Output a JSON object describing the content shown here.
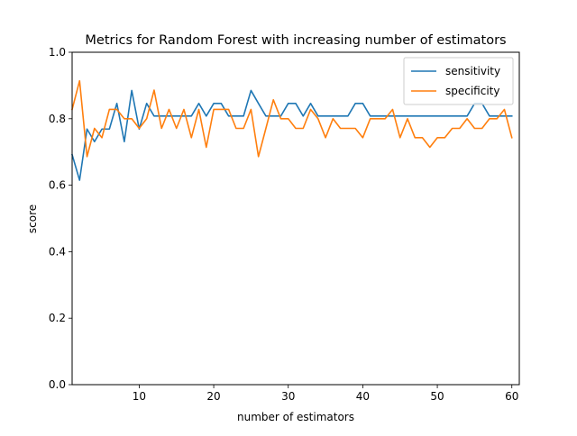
{
  "chart_data": {
    "type": "line",
    "title": "Metrics for Random Forest with increasing number of estimators",
    "xlabel": "number of estimators",
    "ylabel": "score",
    "xlim": [
      1,
      61
    ],
    "ylim": [
      0.0,
      1.0
    ],
    "xticks": [
      10,
      20,
      30,
      40,
      50,
      60
    ],
    "yticks": [
      0.0,
      0.2,
      0.4,
      0.6,
      0.8,
      1.0
    ],
    "xtick_labels": [
      "10",
      "20",
      "30",
      "40",
      "50",
      "60"
    ],
    "ytick_labels": [
      "0.0",
      "0.2",
      "0.4",
      "0.6",
      "0.8",
      "1.0"
    ],
    "grid": false,
    "legend_position": "top-right",
    "x": [
      1,
      2,
      3,
      4,
      5,
      6,
      7,
      8,
      9,
      10,
      11,
      12,
      13,
      14,
      15,
      16,
      17,
      18,
      19,
      20,
      21,
      22,
      23,
      24,
      25,
      26,
      27,
      28,
      29,
      30,
      31,
      32,
      33,
      34,
      35,
      36,
      37,
      38,
      39,
      40,
      41,
      42,
      43,
      44,
      45,
      46,
      47,
      48,
      49,
      50,
      51,
      52,
      53,
      54,
      55,
      56,
      57,
      58,
      59,
      60
    ],
    "series": [
      {
        "name": "sensitivity",
        "color": "#1f77b4",
        "values": [
          0.692,
          0.615,
          0.769,
          0.731,
          0.769,
          0.769,
          0.846,
          0.731,
          0.885,
          0.769,
          0.846,
          0.808,
          0.808,
          0.808,
          0.808,
          0.808,
          0.808,
          0.846,
          0.808,
          0.846,
          0.846,
          0.808,
          0.808,
          0.808,
          0.885,
          0.846,
          0.808,
          0.808,
          0.808,
          0.846,
          0.846,
          0.808,
          0.846,
          0.808,
          0.808,
          0.808,
          0.808,
          0.808,
          0.846,
          0.846,
          0.808,
          0.808,
          0.808,
          0.808,
          0.808,
          0.808,
          0.808,
          0.808,
          0.808,
          0.808,
          0.808,
          0.808,
          0.808,
          0.808,
          0.846,
          0.846,
          0.808,
          0.808,
          0.808,
          0.808
        ]
      },
      {
        "name": "specificity",
        "color": "#ff7f0e",
        "values": [
          0.828,
          0.914,
          0.686,
          0.771,
          0.743,
          0.828,
          0.828,
          0.8,
          0.8,
          0.771,
          0.8,
          0.886,
          0.771,
          0.828,
          0.771,
          0.828,
          0.743,
          0.828,
          0.714,
          0.828,
          0.828,
          0.828,
          0.771,
          0.771,
          0.828,
          0.686,
          0.771,
          0.857,
          0.8,
          0.8,
          0.771,
          0.771,
          0.828,
          0.8,
          0.743,
          0.8,
          0.771,
          0.771,
          0.771,
          0.743,
          0.8,
          0.8,
          0.8,
          0.828,
          0.743,
          0.8,
          0.743,
          0.743,
          0.714,
          0.743,
          0.743,
          0.771,
          0.771,
          0.8,
          0.771,
          0.771,
          0.8,
          0.8,
          0.828,
          0.743
        ]
      }
    ]
  }
}
